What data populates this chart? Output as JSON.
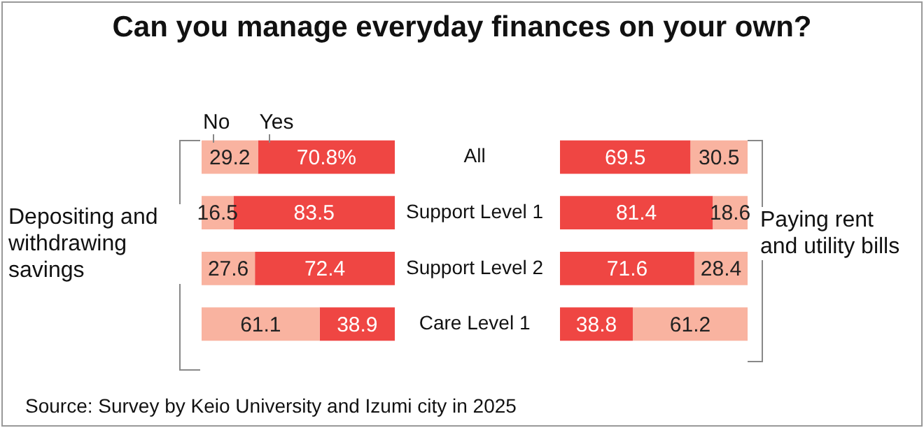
{
  "chart_data": [
    {
      "type": "bar",
      "orientation": "horizontal",
      "stacked": true,
      "title": "Can you manage everyday finances on your own?",
      "ylabel": "Depositing and withdrawing savings",
      "annotations": [
        "Source: Survey by Keio University and Izumi city in 2025"
      ],
      "categories": [
        "All",
        "Support Level 1",
        "Support Level 2",
        "Care Level 1"
      ],
      "xlim": [
        0,
        100
      ],
      "tick_labels": "y",
      "legend": "top left",
      "grid": false,
      "series": [
        {
          "name": "No",
          "color": "#f9b3a0",
          "values": [
            29.2,
            16.5,
            27.6,
            61.1
          ],
          "value_labels": [
            "29.2",
            "16.5",
            "27.6",
            "61.1"
          ]
        },
        {
          "name": "Yes",
          "color": "#ef4643",
          "values": [
            70.8,
            83.5,
            72.4,
            38.9
          ],
          "value_labels": [
            "70.8%",
            "83.5",
            "72.4",
            "38.9"
          ]
        }
      ]
    },
    {
      "type": "bar",
      "orientation": "horizontal",
      "stacked": true,
      "ylabel": "Paying rent and utility bills",
      "categories": [
        null,
        null,
        null,
        null
      ],
      "xlim": [
        0,
        100
      ],
      "tick_labels": false,
      "grid": false,
      "data_labels": true,
      "series": [
        {
          "color": "#ef4643",
          "values": [
            69.5,
            81.4,
            71.6,
            38.8
          ]
        },
        {
          "color": "#f9b3a0",
          "values": [
            30.5,
            18.6,
            28.4,
            61.2
          ]
        }
      ]
    }
  ]
}
